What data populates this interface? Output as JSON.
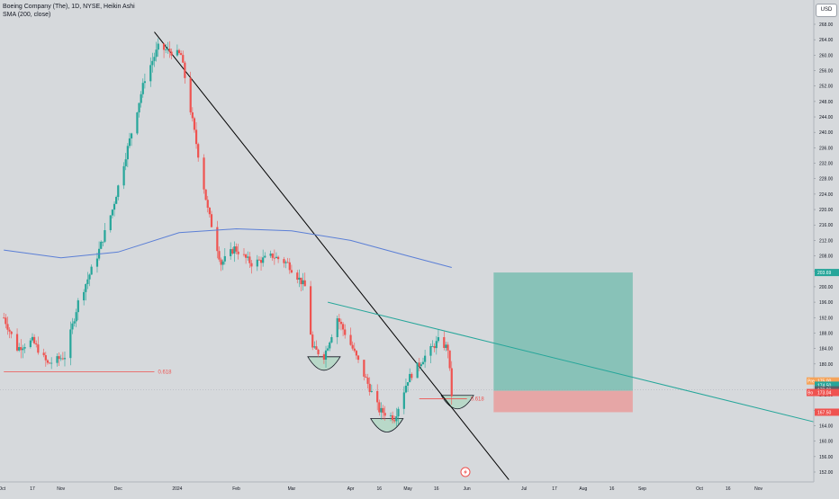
{
  "legend": {
    "symbol_line": "Boeing Company (The), 1D, NYSE, Heikin Ashi",
    "indicator_line": "SMA (200, close)"
  },
  "currency_button": "USD",
  "colors": {
    "background": "#d6d9dc",
    "up_candle": "#26a69a",
    "down_candle": "#ef5350",
    "sma_line": "#5b7fd6",
    "trendline": "#000000",
    "channel_line": "#26a69a",
    "fib_line": "#ef5350",
    "profit_zone": "#7fbfb4",
    "loss_zone": "#e8a0a0",
    "cup_fill": "#b8d8c8"
  },
  "chart_data": {
    "type": "candlestick",
    "title": "Boeing Company (The), 1D, NYSE, Heikin Ashi",
    "y_axis": {
      "min": 150,
      "max": 270,
      "ticks": [
        152.0,
        156.0,
        160.0,
        164.0,
        168.0,
        172.0,
        176.0,
        180.0,
        184.0,
        188.0,
        192.0,
        196.0,
        200.0,
        204.0,
        208.0,
        212.0,
        216.0,
        220.0,
        224.0,
        228.0,
        232.0,
        236.0,
        240.0,
        244.0,
        248.0,
        252.0,
        256.0,
        260.0,
        264.0,
        268.0
      ]
    },
    "x_axis": {
      "labels": [
        "Oct",
        "17",
        "Nov",
        "Dec",
        "2024",
        "Feb",
        "Mar",
        "Apr",
        "16",
        "May",
        "16",
        "Jun",
        "Jul",
        "17",
        "Aug",
        "16",
        "Sep",
        "Oct",
        "16",
        "Nov"
      ]
    },
    "grid": false,
    "price_key_points": [
      {
        "date": "2023-10-02",
        "price": 192
      },
      {
        "date": "2023-10-09",
        "price": 184
      },
      {
        "date": "2023-10-17",
        "price": 186
      },
      {
        "date": "2023-10-25",
        "price": 180
      },
      {
        "date": "2023-11-03",
        "price": 182
      },
      {
        "date": "2023-11-10",
        "price": 196
      },
      {
        "date": "2023-11-20",
        "price": 208
      },
      {
        "date": "2023-11-28",
        "price": 220
      },
      {
        "date": "2023-12-08",
        "price": 240
      },
      {
        "date": "2023-12-15",
        "price": 254
      },
      {
        "date": "2023-12-22",
        "price": 262
      },
      {
        "date": "2024-01-03",
        "price": 260
      },
      {
        "date": "2024-01-10",
        "price": 240
      },
      {
        "date": "2024-01-17",
        "price": 220
      },
      {
        "date": "2024-01-24",
        "price": 206
      },
      {
        "date": "2024-01-31",
        "price": 210
      },
      {
        "date": "2024-02-09",
        "price": 206
      },
      {
        "date": "2024-02-20",
        "price": 208
      },
      {
        "date": "2024-02-28",
        "price": 206
      },
      {
        "date": "2024-03-08",
        "price": 200
      },
      {
        "date": "2024-03-12",
        "price": 184
      },
      {
        "date": "2024-03-18",
        "price": 182
      },
      {
        "date": "2024-03-25",
        "price": 192
      },
      {
        "date": "2024-04-02",
        "price": 184
      },
      {
        "date": "2024-04-09",
        "price": 176
      },
      {
        "date": "2024-04-16",
        "price": 168
      },
      {
        "date": "2024-04-24",
        "price": 166
      },
      {
        "date": "2024-05-01",
        "price": 176
      },
      {
        "date": "2024-05-10",
        "price": 182
      },
      {
        "date": "2024-05-17",
        "price": 186
      },
      {
        "date": "2024-05-22",
        "price": 184
      },
      {
        "date": "2024-05-24",
        "price": 172
      }
    ],
    "sma_200": [
      {
        "date": "2023-10-02",
        "value": 209.5
      },
      {
        "date": "2023-11-01",
        "value": 207.5
      },
      {
        "date": "2023-12-01",
        "value": 209
      },
      {
        "date": "2024-01-02",
        "value": 214
      },
      {
        "date": "2024-02-01",
        "value": 215
      },
      {
        "date": "2024-03-01",
        "value": 214.5
      },
      {
        "date": "2024-04-01",
        "value": 212
      },
      {
        "date": "2024-05-01",
        "value": 208
      },
      {
        "date": "2024-05-24",
        "value": 205
      }
    ],
    "drawings": {
      "descending_trendline": {
        "from": {
          "date": "2023-12-20",
          "price": 266
        },
        "to": {
          "date": "2024-06-23",
          "price": 150
        }
      },
      "descending_channel_line": {
        "from": {
          "date": "2024-03-20",
          "price": 196
        },
        "to": {
          "date": "2024-11-30",
          "price": 165
        }
      },
      "fib_level_1": {
        "label": "0.618",
        "price": 178,
        "from_date": "2023-10-02",
        "to_date": "2023-12-20"
      },
      "fib_level_2": {
        "label": "0.618",
        "price": 171,
        "from_date": "2024-05-07",
        "to_date": "2024-06-01"
      },
      "long_position": {
        "from_date": "2024-06-15",
        "to_date": "2024-08-27",
        "entry": 173.04,
        "target": 203.69,
        "stop": 167.5
      },
      "cups": [
        {
          "date": "2024-03-18",
          "price": 180
        },
        {
          "date": "2024-04-20",
          "price": 164
        },
        {
          "date": "2024-05-27",
          "price": 170
        }
      ]
    },
    "price_labels": [
      {
        "tag": "Pre",
        "value": "175.00",
        "price": 175.6,
        "color": "#f5a35a"
      },
      {
        "tag": "",
        "value": "174.50",
        "price": 174.5,
        "color": "#26a69a"
      },
      {
        "tag": "",
        "value": "173.23",
        "price": 173.3,
        "color": "#5a6169"
      },
      {
        "tag": "",
        "value": "203.69",
        "price": 203.69,
        "color": "#26a69a"
      },
      {
        "tag": "Bo",
        "value": "173.04",
        "price": 172.6,
        "color": "#ef5350"
      },
      {
        "tag": "",
        "value": "167.50",
        "price": 167.5,
        "color": "#ef5350"
      }
    ]
  }
}
